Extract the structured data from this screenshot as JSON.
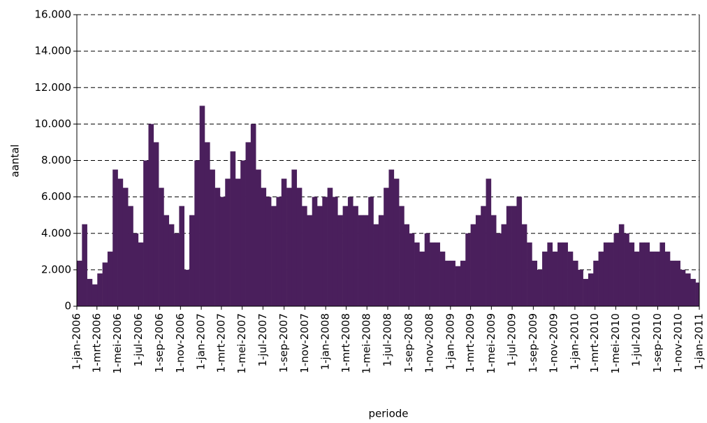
{
  "chart_data": {
    "type": "bar",
    "x_label": "periode",
    "y_label": "aantal",
    "color": "#4a1f5c",
    "grid": true,
    "x": [
      0,
      15,
      30,
      45,
      60,
      75,
      90,
      105,
      120,
      135,
      150,
      165,
      180,
      195,
      210,
      225,
      240,
      255,
      270,
      285,
      300,
      315,
      330,
      345,
      360,
      375,
      390,
      405,
      420,
      435,
      450,
      465,
      480,
      495,
      510,
      525,
      540,
      555,
      570,
      585,
      600,
      615,
      630,
      645,
      660,
      675,
      690,
      705,
      720,
      735,
      750,
      765,
      780,
      795,
      810,
      825,
      840,
      855,
      870,
      885,
      900,
      915,
      930,
      945,
      960,
      975,
      990,
      1005,
      1020,
      1035,
      1050,
      1065,
      1080,
      1095,
      1110,
      1125,
      1140,
      1155,
      1170,
      1185,
      1200,
      1215,
      1230,
      1245,
      1260,
      1275,
      1290,
      1305,
      1320,
      1335,
      1350,
      1365,
      1380,
      1395,
      1410,
      1425,
      1440,
      1455,
      1470,
      1485,
      1500,
      1515,
      1530,
      1545,
      1560,
      1575,
      1590,
      1605,
      1620,
      1635,
      1650,
      1665,
      1680,
      1695,
      1710,
      1725,
      1740,
      1755,
      1770,
      1785,
      1800,
      1815
    ],
    "values": [
      2500,
      4500,
      1500,
      1200,
      1800,
      2400,
      3000,
      7500,
      7000,
      6500,
      5500,
      4000,
      3500,
      8000,
      10000,
      9000,
      6500,
      5000,
      4500,
      4000,
      5500,
      2000,
      5000,
      8000,
      11000,
      9000,
      7500,
      6500,
      6000,
      7000,
      8500,
      7000,
      8000,
      9000,
      10000,
      7500,
      6500,
      6000,
      5500,
      6000,
      7000,
      6500,
      7500,
      6500,
      5500,
      5000,
      6000,
      5500,
      6000,
      6500,
      6000,
      5000,
      5500,
      6000,
      5500,
      5000,
      5000,
      6000,
      4500,
      5000,
      6500,
      7500,
      7000,
      5500,
      4500,
      4000,
      3500,
      3000,
      4000,
      3500,
      3500,
      3000,
      2500,
      2500,
      2200,
      2500,
      4000,
      4500,
      5000,
      5500,
      7000,
      5000,
      4000,
      4500,
      5500,
      5500,
      6000,
      4500,
      3500,
      2500,
      2000,
      3000,
      3500,
      3000,
      3500,
      3500,
      3000,
      2500,
      2000,
      1500,
      1800,
      2500,
      3000,
      3500,
      3500,
      4000,
      4500,
      4000,
      3500,
      3000,
      3500,
      3500,
      3000,
      3000,
      3500,
      3000,
      2500,
      2500,
      2000,
      1800,
      1500,
      1300
    ],
    "xlim": [
      0,
      1826
    ],
    "xticks": [
      {
        "value": 0,
        "label": "1-jan-2006"
      },
      {
        "value": 59,
        "label": "1-mrt-2006"
      },
      {
        "value": 120,
        "label": "1-mei-2006"
      },
      {
        "value": 181,
        "label": "1-jul-2006"
      },
      {
        "value": 243,
        "label": "1-sep-2006"
      },
      {
        "value": 304,
        "label": "1-nov-2006"
      },
      {
        "value": 365,
        "label": "1-jan-2007"
      },
      {
        "value": 424,
        "label": "1-mrt-2007"
      },
      {
        "value": 485,
        "label": "1-mei-2007"
      },
      {
        "value": 546,
        "label": "1-jul-2007"
      },
      {
        "value": 608,
        "label": "1-sep-2007"
      },
      {
        "value": 669,
        "label": "1-nov-2007"
      },
      {
        "value": 730,
        "label": "1-jan-2008"
      },
      {
        "value": 790,
        "label": "1-mrt-2008"
      },
      {
        "value": 851,
        "label": "1-mei-2008"
      },
      {
        "value": 912,
        "label": "1-jul-2008"
      },
      {
        "value": 974,
        "label": "1-sep-2008"
      },
      {
        "value": 1035,
        "label": "1-nov-2008"
      },
      {
        "value": 1096,
        "label": "1-jan-2009"
      },
      {
        "value": 1155,
        "label": "1-mrt-2009"
      },
      {
        "value": 1216,
        "label": "1-mei-2009"
      },
      {
        "value": 1277,
        "label": "1-jul-2009"
      },
      {
        "value": 1339,
        "label": "1-sep-2009"
      },
      {
        "value": 1400,
        "label": "1-nov-2009"
      },
      {
        "value": 1461,
        "label": "1-jan-2010"
      },
      {
        "value": 1520,
        "label": "1-mrt-2010"
      },
      {
        "value": 1581,
        "label": "1-mei-2010"
      },
      {
        "value": 1642,
        "label": "1-jul-2010"
      },
      {
        "value": 1704,
        "label": "1-sep-2010"
      },
      {
        "value": 1765,
        "label": "1-nov-2010"
      },
      {
        "value": 1826,
        "label": "1-jan-2011"
      }
    ],
    "ylim": [
      0,
      16000
    ],
    "yticks": [
      0,
      {
        "value": 2000,
        "label": "2.000"
      },
      {
        "value": 4000,
        "label": "4.000"
      },
      {
        "value": 6000,
        "label": "6.000"
      },
      {
        "value": 8000,
        "label": "8.000"
      },
      {
        "value": 10000,
        "label": "10.000"
      },
      {
        "value": 12000,
        "label": "12.000"
      },
      {
        "value": 14000,
        "label": "14.000"
      },
      {
        "value": 16000,
        "label": "16.000"
      }
    ]
  }
}
